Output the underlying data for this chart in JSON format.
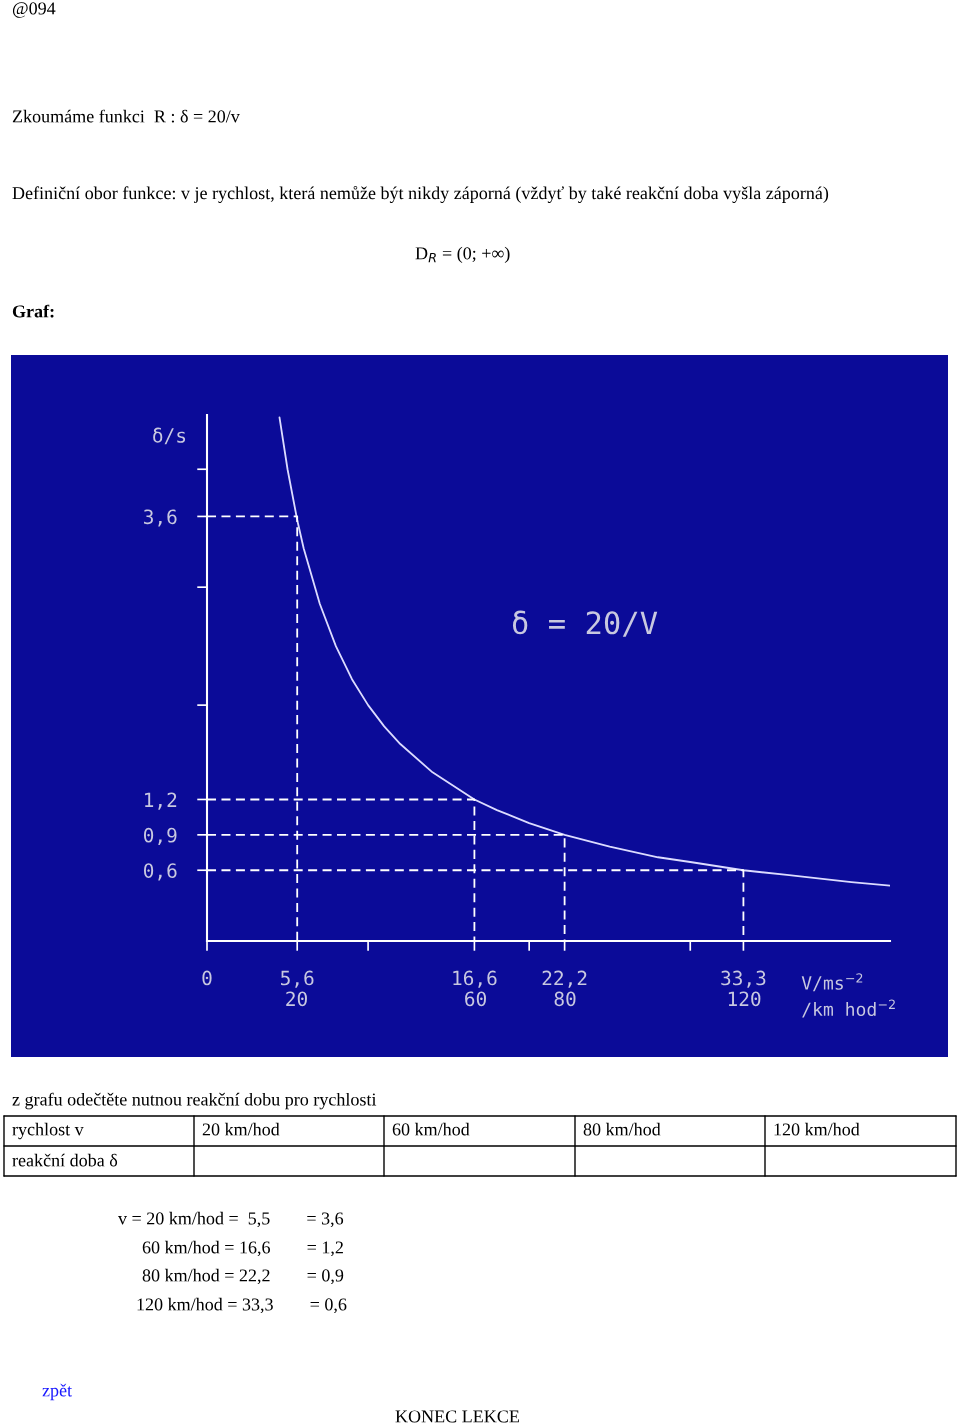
{
  "chart_data": {
    "type": "line",
    "xlabel": "V/ms$^{−2}$",
    "x2label": "/km hod$^{−2}$",
    "ylabel": "δ/s",
    "x2lim": [
      0,
      152.6
    ],
    "x2ticks": [
      20,
      60,
      80,
      120
    ],
    "xlim": [
      0,
      42.4
    ],
    "ylim": [
      0,
      4.46
    ],
    "xticks": [
      {
        "value": 0,
        "label": "0"
      },
      {
        "value": 5.6,
        "label": "5,6"
      },
      {
        "value": 10,
        "label": null
      },
      {
        "value": 16.6,
        "label": "16,6"
      },
      {
        "value": 20,
        "label": null
      },
      {
        "value": 22.2,
        "label": "22,2"
      },
      {
        "value": 30,
        "label": null
      },
      {
        "value": 33.3,
        "label": "33,3"
      }
    ],
    "yticks": [
      {
        "value": 0.6,
        "label": "0,6"
      },
      {
        "value": 0.9,
        "label": "0,9"
      },
      {
        "value": 1.2,
        "label": "1,2"
      },
      {
        "value": 2,
        "label": null
      },
      {
        "value": 3,
        "label": null
      },
      {
        "value": 3.6,
        "label": "3,6"
      },
      {
        "value": 4,
        "label": null
      }
    ],
    "series": [
      {
        "color": "#dcdcff",
        "line_style": "solid",
        "x": [
          4.5,
          5,
          5.6,
          6,
          7,
          8,
          9,
          10,
          11,
          12,
          14,
          16.6,
          18,
          20,
          22.2,
          25,
          28,
          30,
          33.3,
          36,
          40,
          42.4
        ],
        "values": [
          4.44,
          4.0,
          3.57,
          3.33,
          2.86,
          2.5,
          2.22,
          2.0,
          1.82,
          1.67,
          1.43,
          1.2,
          1.11,
          1.0,
          0.9,
          0.8,
          0.71,
          0.67,
          0.6,
          0.56,
          0.5,
          0.47
        ]
      },
      {
        "color": "#ffffff",
        "line_style": "dashed",
        "x": [
          0,
          5.6,
          5.6
        ],
        "values": [
          3.6,
          3.6,
          0
        ]
      },
      {
        "color": "#ffffff",
        "line_style": "dashed",
        "x": [
          0,
          16.6,
          16.6
        ],
        "values": [
          1.2,
          1.2,
          0
        ]
      },
      {
        "color": "#ffffff",
        "line_style": "dashed",
        "x": [
          0,
          22.2,
          22.2
        ],
        "values": [
          0.9,
          0.9,
          0
        ]
      },
      {
        "color": "#ffffff",
        "line_style": "dashed",
        "x": [
          0,
          33.3,
          33.3
        ],
        "values": [
          0.6,
          0.6,
          0
        ]
      }
    ],
    "annotations": [
      "δ = 20/V",
      "@094",
      "Zkoumáme funkci  R : δ = 20/v",
      "Definiční obor funkce: v je rychlost, která nemůže být nikdy záporná (vždyť by také reakční doba vyšla záporná)",
      "D$_{R}$ = (0; +∞)",
      "Graf:",
      "z grafu odečtěte nutnou reakční dobu pro rychlosti",
      "rychlost v",
      "20 km/hod",
      "60 km/hod",
      "80 km/hod",
      "120 km/hod",
      "reakční doba δ",
      "v = 20 km/hod =  5,5        = 3,6",
      "60 km/hod = 16,6        = 1,2",
      "80 km/hod = 22,2        = 0,9",
      "120 km/hod = 33,3        = 0,6",
      "zpět",
      "KONEC LEKCE"
    ]
  }
}
